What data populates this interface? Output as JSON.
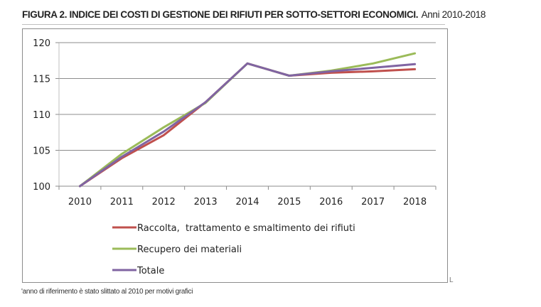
{
  "figure": {
    "title_bold": "FIGURA 2.  INDICE DEI COSTI DI GESTIONE DEI RIFIUTI PER SOTTO-SETTORI ECONOMICI.",
    "title_light": "Anni 2010-2018",
    "footnote": "'anno di riferimento è stato slittato al 2010 per motivi grafici",
    "corner_mark": "L"
  },
  "chart_data": {
    "type": "line",
    "title": "INDICE DEI COSTI DI GESTIONE DEI RIFIUTI PER SOTTO-SETTORI ECONOMICI. Anni 2010-2018",
    "xlabel": "",
    "ylabel": "",
    "x": [
      "2010",
      "2011",
      "2012",
      "2013",
      "2014",
      "2015",
      "2016",
      "2017",
      "2018"
    ],
    "ylim": [
      100,
      120
    ],
    "yticks": [
      100,
      105,
      110,
      115,
      120
    ],
    "ytick_labels": [
      "100",
      "105",
      "110",
      "115",
      "120"
    ],
    "grid": true,
    "legend_position": "bottom",
    "series": [
      {
        "name": "Raccolta,  trattamento e smaltimento dei rifiuti",
        "color": "#c0504d",
        "values": [
          100.0,
          103.9,
          107.1,
          111.7,
          117.1,
          115.4,
          115.8,
          116.0,
          116.3
        ]
      },
      {
        "name": "Recupero dei materiali",
        "color": "#9bbb59",
        "values": [
          100.0,
          104.5,
          108.2,
          111.6,
          117.1,
          115.4,
          116.1,
          117.1,
          118.5
        ]
      },
      {
        "name": "Totale",
        "color": "#8064a2",
        "values": [
          100.0,
          104.1,
          107.6,
          111.7,
          117.1,
          115.4,
          116.0,
          116.5,
          117.0
        ]
      }
    ]
  }
}
